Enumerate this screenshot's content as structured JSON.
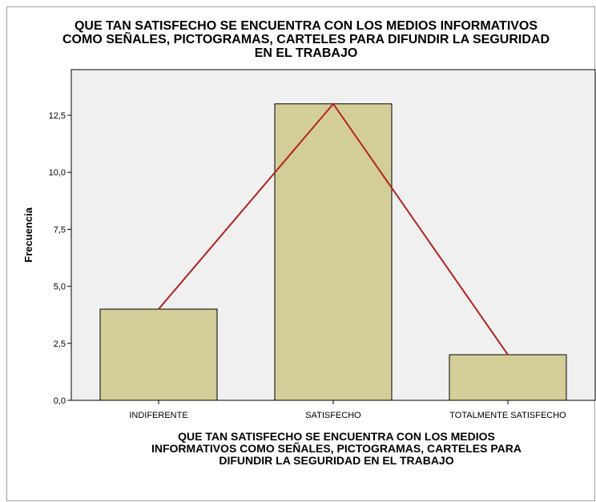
{
  "chart_data": {
    "type": "bar",
    "title": "QUE TAN SATISFECHO SE ENCUENTRA CON LOS MEDIOS INFORMATIVOS\nCOMO SEÑALES, PICTOGRAMAS, CARTELES PARA DIFUNDIR LA SEGURIDAD\nEN EL TRABAJO",
    "xlabel": "QUE TAN SATISFECHO SE ENCUENTRA CON LOS MEDIOS\nINFORMATIVOS COMO SEÑALES, PICTOGRAMAS, CARTELES PARA\nDIFUNDIR LA SEGURIDAD EN EL TRABAJO",
    "ylabel": "Frecuencia",
    "categories": [
      "INDIFERENTE",
      "SATISFECHO",
      "TOTALMENTE SATISFECHO"
    ],
    "values": [
      4,
      13,
      2
    ],
    "ylim": [
      0,
      14.5
    ],
    "yticks": [
      "0,0",
      "2,5",
      "5,0",
      "7,5",
      "10,0",
      "12,5"
    ],
    "line_overlay": true,
    "colors": {
      "bar_fill": "#d3ce97",
      "bar_stroke": "#000000",
      "line": "#b22222",
      "plot_bg": "#f0f0f0"
    }
  }
}
